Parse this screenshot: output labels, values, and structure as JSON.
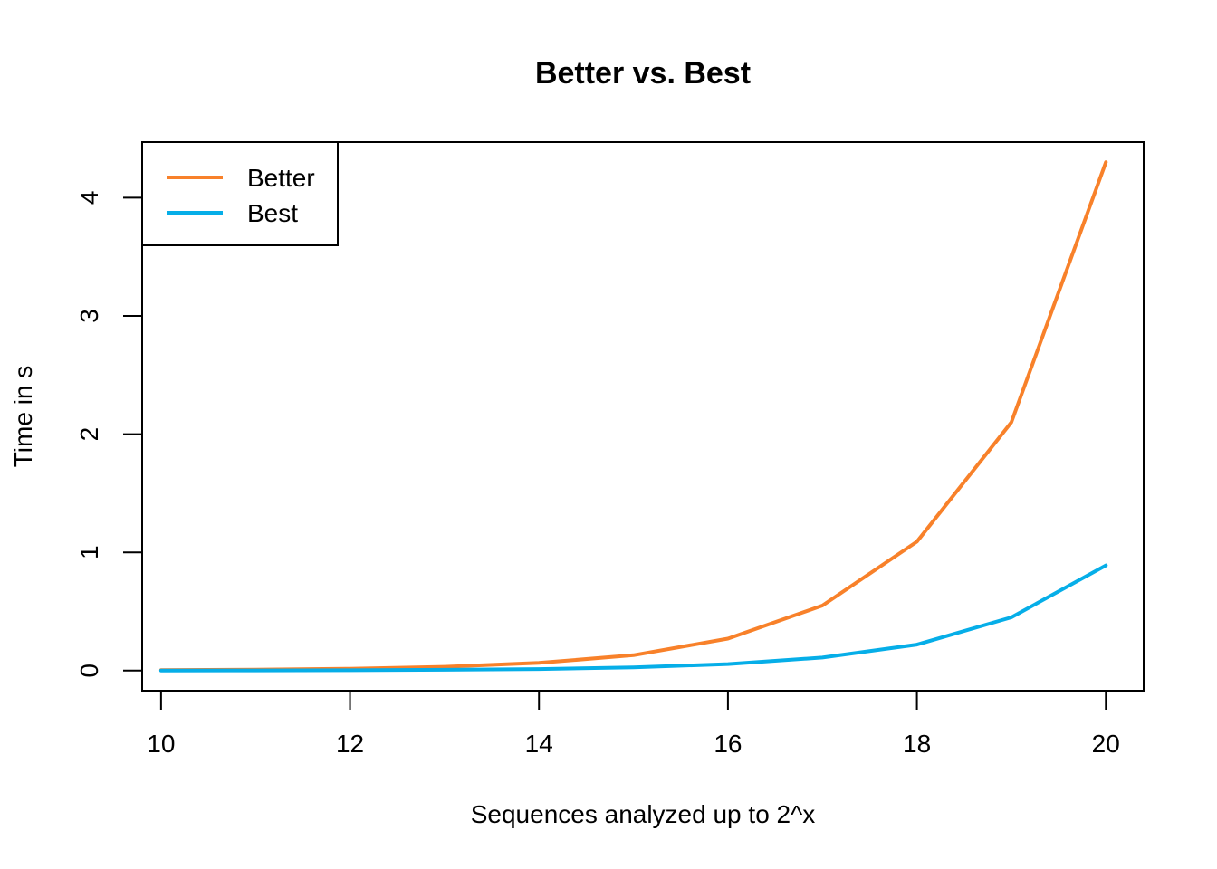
{
  "chart_data": {
    "type": "line",
    "title": "Better vs. Best",
    "xlabel": "Sequences analyzed up to 2^x",
    "ylabel": "Time in s",
    "x": [
      10,
      11,
      12,
      13,
      14,
      15,
      16,
      17,
      18,
      19,
      20
    ],
    "xlim": [
      9.8,
      20.4
    ],
    "ylim": [
      -0.17,
      4.47
    ],
    "x_ticks": [
      10,
      12,
      14,
      16,
      18,
      20
    ],
    "y_ticks": [
      0,
      1,
      2,
      3,
      4
    ],
    "grid": false,
    "legend_position": "top-left",
    "series": [
      {
        "name": "Better",
        "color": "#F8812A",
        "values": [
          0.004,
          0.008,
          0.016,
          0.032,
          0.065,
          0.13,
          0.27,
          0.55,
          1.09,
          2.1,
          4.3
        ]
      },
      {
        "name": "Best",
        "color": "#06AEE8",
        "values": [
          0.0008,
          0.0016,
          0.0033,
          0.0066,
          0.013,
          0.027,
          0.055,
          0.11,
          0.22,
          0.45,
          0.89
        ]
      }
    ]
  }
}
